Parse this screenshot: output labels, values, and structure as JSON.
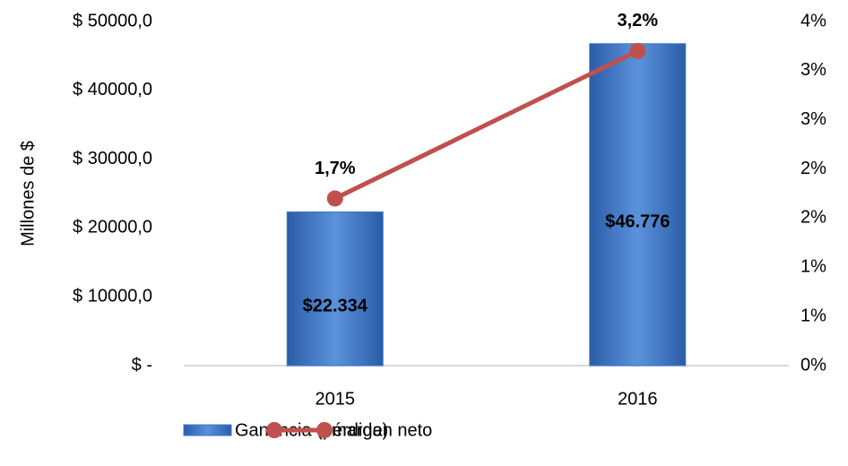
{
  "chart_data": {
    "type": "bar_line",
    "y_label": "Millones de $",
    "categories": [
      "2015",
      "2016"
    ],
    "series": [
      {
        "name": "Ganancia (pérdida)",
        "type": "bar",
        "color": "#3f78c6",
        "values": [
          22334,
          46776
        ],
        "value_labels": [
          "$22.334",
          "$46.776"
        ]
      },
      {
        "name": "margen neto",
        "type": "line",
        "axis": "y2",
        "color": "#c0504d",
        "values": [
          1.7,
          3.2
        ],
        "value_labels": [
          "1,7%",
          "3,2%"
        ]
      }
    ],
    "ylim": [
      0,
      50000
    ],
    "yticks": [
      {
        "value": 0,
        "label": "$ -"
      },
      {
        "value": 10000,
        "label": "$ 10000,0"
      },
      {
        "value": 20000,
        "label": "$ 20000,0"
      },
      {
        "value": 30000,
        "label": "$ 30000,0"
      },
      {
        "value": 40000,
        "label": "$ 40000,0"
      },
      {
        "value": 50000,
        "label": "$ 50000,0"
      }
    ],
    "y2lim": [
      0,
      3.5
    ],
    "y2ticks": [
      {
        "value": 0,
        "label": "0%"
      },
      {
        "value": 0.5,
        "label": "1%"
      },
      {
        "value": 1,
        "label": "1%"
      },
      {
        "value": 1.5,
        "label": "2%"
      },
      {
        "value": 2,
        "label": "2%"
      },
      {
        "value": 2.5,
        "label": "3%"
      },
      {
        "value": 3,
        "label": "3%"
      },
      {
        "value": 3.5,
        "label": "4%"
      }
    ],
    "legend": "bottom"
  }
}
